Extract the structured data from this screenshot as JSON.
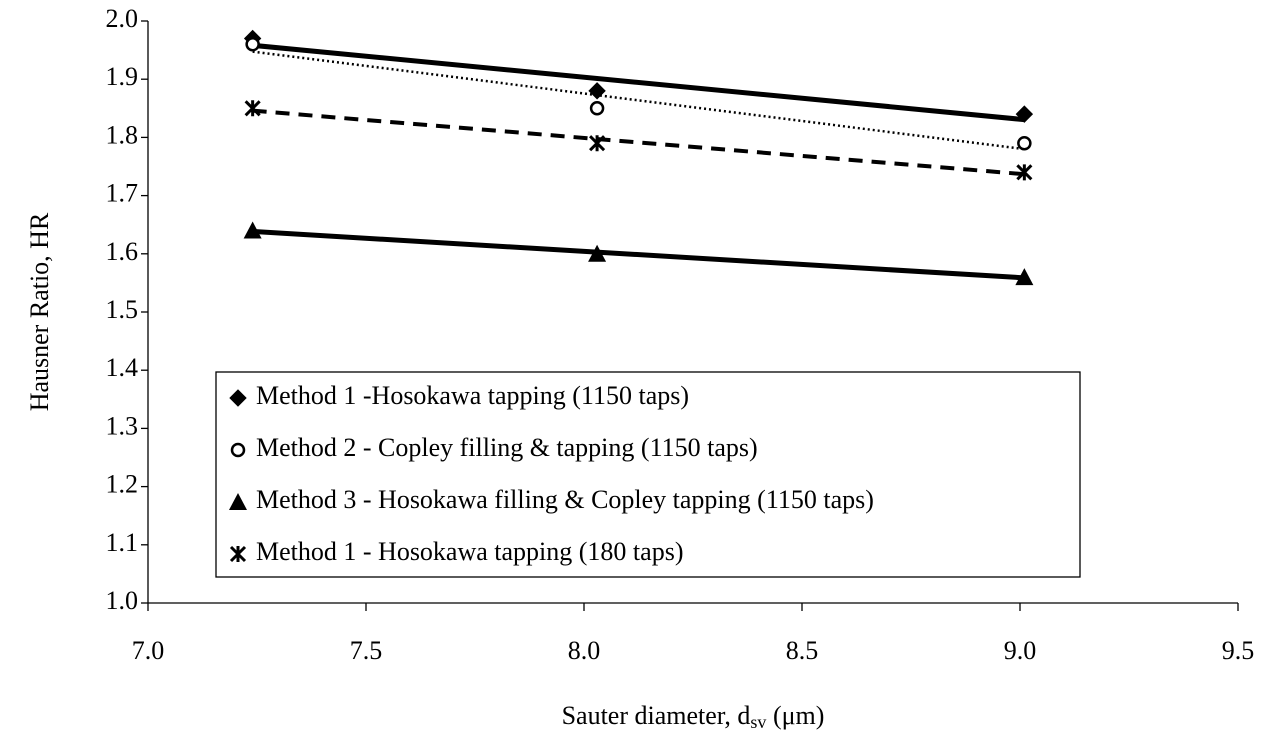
{
  "chart_data": {
    "type": "scatter",
    "xlabel": {
      "text": "Sauter diameter, d",
      "subscript": "sv",
      "suffix": " (μm)"
    },
    "ylabel": "Hausner Ratio, HR",
    "x": [
      7.24,
      8.03,
      9.01
    ],
    "series": [
      {
        "name": "Method 1 -Hosokawa tapping (1150 taps)",
        "color": "#000000",
        "marker": "diamond",
        "line_style": "thick",
        "values": [
          1.97,
          1.88,
          1.84
        ]
      },
      {
        "name": "Method 2 - Copley filling & tapping (1150 taps)",
        "color": "#000000",
        "marker": "circle",
        "line_style": "dotted",
        "values": [
          1.96,
          1.85,
          1.79
        ]
      },
      {
        "name": "Method 3 - Hosokawa filling & Copley tapping (1150 taps)",
        "color": "#000000",
        "marker": "triangle",
        "line_style": "thick",
        "values": [
          1.64,
          1.6,
          1.56
        ]
      },
      {
        "name": "Method 1 - Hosokawa tapping (180 taps)",
        "color": "#000000",
        "marker": "asterisk",
        "line_style": "dashed",
        "values": [
          1.85,
          1.79,
          1.74
        ]
      }
    ],
    "trendline": "linear",
    "xlim": [
      7,
      9.5
    ],
    "xticks": [
      {
        "value": 7,
        "label": "7.0"
      },
      7.5,
      {
        "value": 8,
        "label": "8.0"
      },
      8.5,
      {
        "value": 9,
        "label": "9.0"
      },
      9.5
    ],
    "ylim": [
      1,
      2
    ],
    "yticks": [
      {
        "value": 1,
        "label": "1.0"
      },
      1.1,
      1.2,
      1.3,
      1.4,
      1.5,
      1.6,
      1.7,
      1.8,
      1.9,
      {
        "value": 2,
        "label": "2.0"
      }
    ],
    "grid": false,
    "legend": "lower left"
  }
}
